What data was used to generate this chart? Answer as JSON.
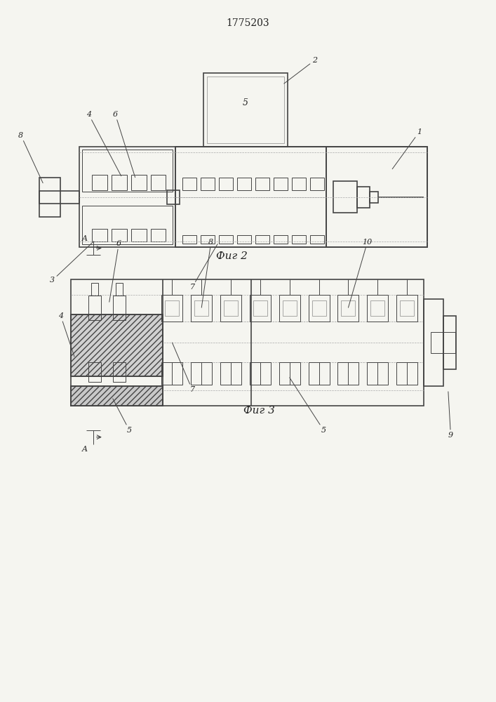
{
  "title": "1775203",
  "fig2_caption": "Фиг 2",
  "fig3_caption": "Фиг 3",
  "bg_color": "#f5f5f0",
  "line_color": "#444444",
  "line_color_light": "#777777"
}
